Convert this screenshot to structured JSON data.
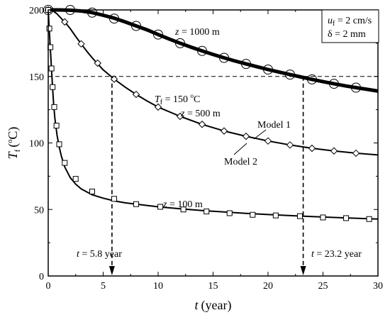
{
  "chart_data": {
    "type": "line",
    "xlabel_var": "t",
    "xlabel_unit": "(year)",
    "ylabel_var": "T",
    "ylabel_sub": "f",
    "ylabel_unit_open": "(",
    "ylabel_unit_deg": "o",
    "ylabel_unit_close": "C)",
    "xlim": [
      0,
      30
    ],
    "ylim": [
      0,
      200
    ],
    "xticks": [
      0,
      5,
      10,
      15,
      20,
      25,
      30
    ],
    "yticks": [
      0,
      50,
      100,
      150,
      200
    ],
    "legend_box": {
      "line1_var": "u",
      "line1_sub": "f",
      "line1_val": " = 2 cm/s",
      "line2": "δ = 2 mm"
    },
    "reference_line": {
      "y": 150,
      "label_var": "T",
      "label_sub": "f",
      "label_val": " = 150 ",
      "label_deg": "o",
      "label_unit": "C"
    },
    "time_markers": [
      {
        "x": 5.8,
        "label_var": "t",
        "label_val": " = 5.8 year"
      },
      {
        "x": 23.2,
        "label_var": "t",
        "label_val": " = 23.2 year"
      }
    ],
    "model_labels": {
      "model1": "Model 1",
      "model2": "Model 2"
    },
    "series": [
      {
        "name": "z = 1000 m",
        "name_var": "z",
        "name_val": " = 1000 m",
        "marker": "circle",
        "line_x": [
          0,
          1,
          2,
          3,
          4,
          5,
          6,
          7,
          8,
          9,
          10,
          11,
          12,
          13,
          14,
          15,
          16,
          17,
          18,
          19,
          20,
          21,
          22,
          23,
          24,
          25,
          26,
          27,
          28,
          29,
          30
        ],
        "line_y": [
          200,
          200,
          199.8,
          199.2,
          198,
          196,
          193.8,
          191,
          188,
          185,
          181.5,
          178.2,
          175,
          172,
          169.2,
          166.5,
          164,
          161.6,
          159.4,
          157.3,
          155.2,
          153.3,
          151.4,
          149.6,
          147.8,
          146.1,
          144.5,
          143,
          141.6,
          140.3,
          139
        ],
        "marker_x": [
          0,
          2,
          4,
          6,
          8,
          10,
          12,
          14,
          16,
          18,
          20,
          22,
          24,
          26,
          28
        ],
        "marker_y": [
          200,
          200,
          198,
          193.5,
          188,
          181.5,
          175,
          169.2,
          164,
          159.4,
          155.2,
          151.4,
          147.8,
          144.5,
          141.6
        ]
      },
      {
        "name": "z = 500 m",
        "name_var": "z",
        "name_val": " = 500 m",
        "marker": "diamond",
        "line_x": [
          0,
          0.4,
          0.8,
          1.2,
          1.6,
          2,
          2.5,
          3,
          3.5,
          4,
          5,
          6,
          7,
          8,
          9,
          10,
          12,
          14,
          16,
          18,
          20,
          22,
          24,
          26,
          28,
          30
        ],
        "line_y": [
          200,
          199.5,
          197,
          193.5,
          190,
          186,
          180,
          174.5,
          169,
          164,
          155,
          148,
          142,
          136.5,
          131.5,
          127,
          120,
          114,
          109,
          105,
          101.5,
          98.5,
          96,
          94,
          92.3,
          91
        ],
        "marker_x": [
          0,
          1.5,
          3,
          4.5,
          6,
          8,
          10,
          12,
          14,
          16,
          18,
          20,
          22,
          24,
          26,
          28
        ],
        "marker_y": [
          200,
          191,
          174.5,
          160,
          148,
          136.5,
          127,
          120,
          114,
          109,
          105,
          101.5,
          98.5,
          96,
          94,
          92.3
        ]
      },
      {
        "name": "z = 100 m",
        "name_var": "z",
        "name_val": " = 100 m",
        "marker": "square",
        "line_x": [
          0,
          0.1,
          0.2,
          0.3,
          0.4,
          0.5,
          0.6,
          0.8,
          1,
          1.2,
          1.5,
          2,
          2.5,
          3,
          4,
          5,
          6,
          7,
          8,
          10,
          12,
          14,
          16,
          18,
          20,
          22,
          24,
          26,
          28,
          30
        ],
        "line_y": [
          200,
          185,
          170,
          155,
          141,
          128,
          119,
          106,
          97,
          90,
          82,
          74,
          69,
          65.5,
          61,
          58.5,
          56.5,
          55,
          54,
          52,
          50.5,
          49.2,
          48.1,
          47.1,
          46.2,
          45.4,
          44.7,
          44,
          43.4,
          42.8
        ],
        "marker_x": [
          0,
          0.1,
          0.2,
          0.3,
          0.4,
          0.55,
          0.75,
          1,
          1.5,
          2.5,
          4,
          6,
          8,
          10.2,
          12.3,
          14.4,
          16.5,
          18.6,
          20.7,
          22.9,
          25,
          27.1,
          29.2
        ],
        "marker_y": [
          200,
          186,
          172,
          156,
          142,
          127,
          113,
          99,
          85,
          73,
          63.5,
          58,
          54,
          52,
          50,
          48.5,
          47.2,
          46,
          45.5,
          45,
          44,
          43.5,
          42.8
        ]
      }
    ]
  }
}
